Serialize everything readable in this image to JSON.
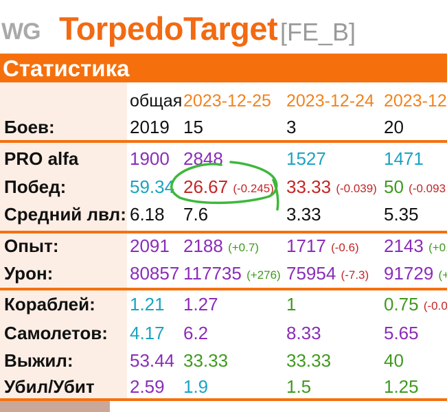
{
  "header": {
    "logo": "WG",
    "title": "TorpedoTarget",
    "clan_tag": "[FE_B]"
  },
  "section": {
    "title": "Статистика"
  },
  "columns": {
    "total": "общая",
    "d1": "2023-12-25",
    "d2": "2023-12-24",
    "d3": "2023-12-"
  },
  "rows": {
    "battles": {
      "label": "Боев:",
      "total": "2019",
      "d1": "15",
      "d2": "3",
      "d3": "20"
    },
    "pro": {
      "label": "PRO alfa",
      "total": "1900",
      "d1": "2848",
      "d2": "1527",
      "d3": "1471"
    },
    "wins": {
      "label": "Побед:",
      "total": "59.34",
      "d1": "26.67",
      "d1_delta": "(-0.245)",
      "d2": "33.33",
      "d2_delta": "(-0.039)",
      "d3": "50",
      "d3_delta": "(-0.093"
    },
    "tier": {
      "label": "Средний лвл:",
      "total": "6.18",
      "d1": "7.6",
      "d2": "3.33",
      "d3": "5.35"
    },
    "xp": {
      "label": "Опыт:",
      "total": "2091",
      "d1": "2188",
      "d1_delta": "(+0.7)",
      "d2": "1717",
      "d2_delta": "(-0.6)",
      "d3": "2143",
      "d3_delta": "(+0."
    },
    "damage": {
      "label": "Урон:",
      "total": "80857",
      "d1": "117735",
      "d1_delta": "(+276)",
      "d2": "75954",
      "d2_delta": "(-7.3)",
      "d3": "91729",
      "d3_delta": "(+"
    },
    "ships": {
      "label": "Кораблей:",
      "total": "1.21",
      "d1": "1.27",
      "d2": "1",
      "d3": "0.75",
      "d3_delta": "(-0.0"
    },
    "planes": {
      "label": "Самолетов:",
      "total": "4.17",
      "d1": "6.2",
      "d2": "8.33",
      "d3": "5.65"
    },
    "survived": {
      "label": "Выжил:",
      "total": "53.44",
      "d1": "33.33",
      "d2": "33.33",
      "d3": "40"
    },
    "kd": {
      "label": "Убил/Убит",
      "total": "2.59",
      "d1": "1.9",
      "d2": "1.5",
      "d3": "1.25"
    }
  },
  "colors": {
    "accent": "#f5700d",
    "purple": "#8a2db8",
    "cyan": "#1ba3c2",
    "red": "#c42525",
    "green": "#3e9a1e",
    "annotation": "#3db83a"
  }
}
